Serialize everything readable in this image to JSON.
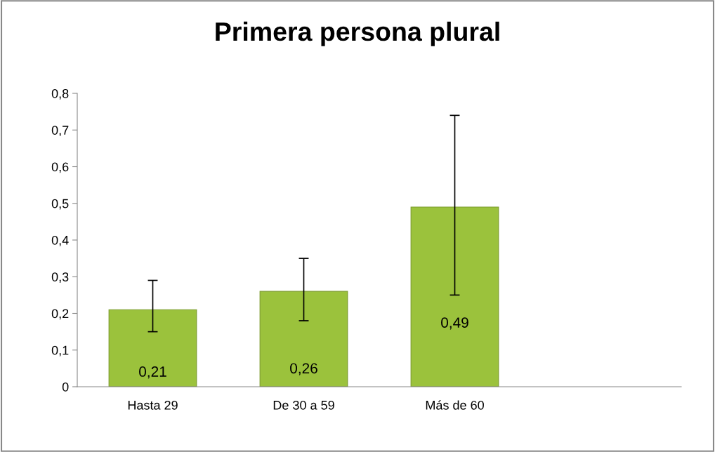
{
  "chart_data": {
    "type": "bar",
    "title": "Primera persona plural",
    "categories": [
      "Hasta 29",
      "De 30 a 59",
      "Más de 60",
      null
    ],
    "values": [
      0.21,
      0.26,
      0.49,
      null
    ],
    "errors": [
      [
        0.15,
        0.29
      ],
      [
        0.18,
        0.35
      ],
      [
        0.25,
        0.74
      ],
      null
    ],
    "value_labels": [
      "0,21",
      "0,26",
      "0,49",
      null
    ],
    "color": "#9bc23c",
    "ylim": [
      0,
      0.8
    ],
    "yticks": [
      0,
      {
        "value": 0.1,
        "label": "0,1"
      },
      {
        "value": 0.2,
        "label": "0,2"
      },
      {
        "value": 0.3,
        "label": "0,3"
      },
      {
        "value": 0.4,
        "label": "0,4"
      },
      {
        "value": 0.5,
        "label": "0,5"
      },
      {
        "value": 0.6,
        "label": "0,6"
      },
      {
        "value": 0.7,
        "label": "0,7"
      },
      {
        "value": 0.8,
        "label": "0,8"
      }
    ],
    "grid": false,
    "legend": false
  }
}
